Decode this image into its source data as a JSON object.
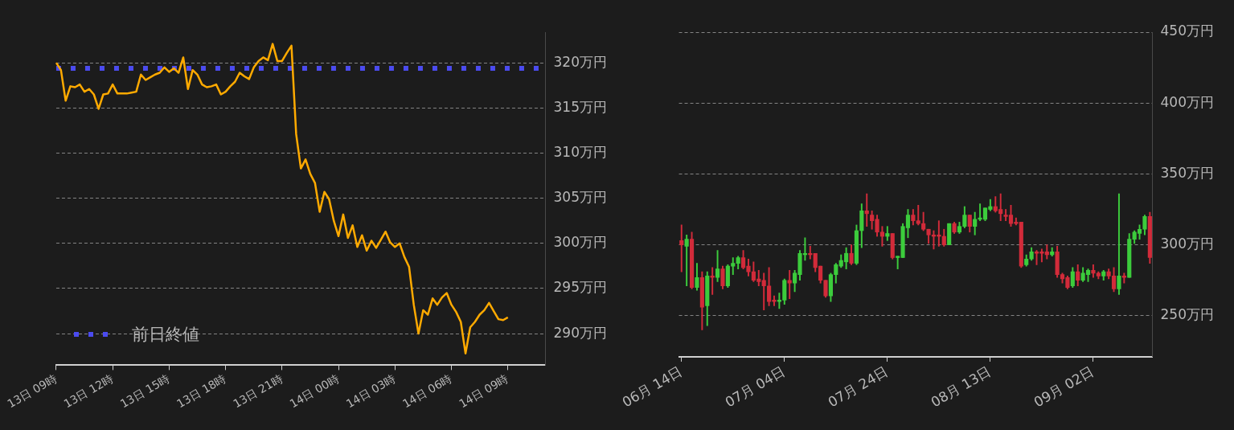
{
  "chart_data": [
    {
      "type": "line",
      "categories": [
        "13日 09時",
        null,
        null,
        null,
        null,
        null,
        null,
        null,
        null,
        null,
        null,
        null,
        "13日 12時",
        null,
        null,
        null,
        null,
        null,
        null,
        null,
        null,
        null,
        null,
        null,
        "13日 15時",
        null,
        null,
        null,
        null,
        null,
        null,
        null,
        null,
        null,
        null,
        null,
        "13日 18時",
        null,
        null,
        null,
        null,
        null,
        null,
        null,
        null,
        null,
        null,
        null,
        "13日 21時",
        null,
        null,
        null,
        null,
        null,
        null,
        null,
        null,
        null,
        null,
        null,
        "14日 00時",
        null,
        null,
        null,
        null,
        null,
        null,
        null,
        null,
        null,
        null,
        null,
        "14日 03時",
        null,
        null,
        null,
        null,
        null,
        null,
        null,
        null,
        null,
        null,
        null,
        "14日 06時",
        null,
        null,
        null,
        null,
        null,
        null,
        null,
        null,
        null,
        null,
        null,
        "14日 09時",
        null,
        null,
        null,
        null,
        null,
        null,
        null,
        null
      ],
      "series": [
        {
          "color": "#ffaa00",
          "values": [
            320.0,
            319.2,
            315.8,
            317.4,
            317.3,
            317.6,
            316.8,
            317.1,
            316.5,
            314.9,
            316.5,
            316.6,
            317.6,
            316.6,
            316.6,
            316.6,
            316.7,
            316.8,
            318.7,
            318.1,
            318.4,
            318.7,
            318.9,
            319.5,
            319.0,
            319.4,
            318.9,
            320.6,
            317.1,
            319.2,
            318.7,
            317.6,
            317.3,
            317.4,
            317.6,
            316.5,
            316.8,
            317.4,
            317.9,
            318.9,
            318.5,
            318.2,
            319.5,
            320.2,
            320.6,
            320.3,
            322.1,
            320.2,
            320.2,
            321.1,
            321.9,
            312.1,
            308.3,
            309.3,
            307.7,
            306.7,
            303.5,
            305.7,
            304.9,
            302.5,
            300.8,
            303.2,
            300.6,
            302.0,
            299.6,
            300.9,
            299.2,
            300.3,
            299.5,
            300.4,
            301.3,
            300.1,
            299.6,
            300.0,
            298.5,
            297.4,
            293.2,
            290.0,
            292.6,
            292.1,
            293.9,
            293.2,
            294.0,
            294.5,
            293.2,
            292.4,
            291.3,
            287.8,
            290.7,
            291.3,
            292.1,
            292.6,
            293.4,
            292.5,
            291.6,
            291.5,
            291.8,
            null,
            null,
            null,
            null,
            null,
            null,
            null,
            null
          ]
        }
      ],
      "ylim": [
        286.5,
        323.4
      ],
      "yticks": [
        {
          "value": 290,
          "label": "290万円"
        },
        {
          "value": 295,
          "label": "295万円"
        },
        {
          "value": 300,
          "label": "300万円"
        },
        {
          "value": 305,
          "label": "305万円"
        },
        {
          "value": 310,
          "label": "310万円"
        },
        {
          "value": 315,
          "label": "315万円"
        },
        {
          "value": 320,
          "label": "320万円"
        }
      ],
      "ref_lines": [
        {
          "axis": "y",
          "value": 319.4,
          "label": "前日終値",
          "color": "#4b4bf0",
          "line_style": "dotted"
        }
      ],
      "grid": "y",
      "legend": "bottom left"
    },
    {
      "type": "candlestick",
      "categories": [
        "06月 14日",
        null,
        null,
        null,
        null,
        null,
        null,
        null,
        null,
        null,
        null,
        null,
        null,
        null,
        null,
        null,
        null,
        null,
        null,
        null,
        "07月 04日",
        null,
        null,
        null,
        null,
        null,
        null,
        null,
        null,
        null,
        null,
        null,
        null,
        null,
        null,
        null,
        null,
        null,
        null,
        null,
        "07月 24日",
        null,
        null,
        null,
        null,
        null,
        null,
        null,
        null,
        null,
        null,
        null,
        null,
        null,
        null,
        null,
        null,
        null,
        null,
        null,
        "08月 13日",
        null,
        null,
        null,
        null,
        null,
        null,
        null,
        null,
        null,
        null,
        null,
        null,
        null,
        null,
        null,
        null,
        null,
        null,
        null,
        "09月 02日",
        null,
        null,
        null,
        null,
        null,
        null,
        null,
        null,
        null,
        null,
        null
      ],
      "ohlc": [
        [
          303,
          314,
          281,
          300
        ],
        [
          299,
          307,
          271,
          304
        ],
        [
          304,
          309,
          269,
          270
        ],
        [
          270,
          287,
          268,
          277
        ],
        [
          277,
          281,
          240,
          256
        ],
        [
          257,
          281,
          243,
          278
        ],
        [
          278,
          284,
          265,
          277
        ],
        [
          277,
          296,
          274,
          283
        ],
        [
          283,
          285,
          269,
          271
        ],
        [
          271,
          286,
          270,
          285
        ],
        [
          285,
          291,
          279,
          287
        ],
        [
          287,
          292,
          283,
          291
        ],
        [
          291,
          296,
          283,
          284
        ],
        [
          285,
          290,
          278,
          281
        ],
        [
          281,
          288,
          274,
          275
        ],
        [
          276,
          282,
          271,
          274
        ],
        [
          275,
          280,
          254,
          271
        ],
        [
          271,
          284,
          257,
          260
        ],
        [
          261,
          264,
          257,
          260
        ],
        [
          260,
          266,
          255,
          261
        ],
        [
          261,
          276,
          258,
          275
        ],
        [
          275,
          282,
          262,
          273
        ],
        [
          273,
          282,
          267,
          280
        ],
        [
          279,
          296,
          275,
          294
        ],
        [
          293,
          305,
          289,
          294
        ],
        [
          294,
          299,
          290,
          293
        ],
        [
          294,
          294,
          281,
          284
        ],
        [
          285,
          285,
          273,
          275
        ],
        [
          275,
          275,
          263,
          264
        ],
        [
          264,
          280,
          260,
          279
        ],
        [
          279,
          287,
          273,
          286
        ],
        [
          285,
          293,
          284,
          289
        ],
        [
          288,
          298,
          283,
          294
        ],
        [
          294,
          300,
          286,
          287
        ],
        [
          287,
          314,
          286,
          310
        ],
        [
          310,
          329,
          298,
          324
        ],
        [
          324,
          336,
          313,
          322
        ],
        [
          321,
          324,
          311,
          317
        ],
        [
          318,
          321,
          306,
          309
        ],
        [
          309,
          313,
          299,
          306
        ],
        [
          306,
          313,
          303,
          308
        ],
        [
          308,
          308,
          290,
          291
        ],
        [
          291,
          292,
          283,
          292
        ],
        [
          291,
          315,
          291,
          313
        ],
        [
          312,
          325,
          305,
          321
        ],
        [
          321,
          325,
          314,
          317
        ],
        [
          317,
          328,
          314,
          315
        ],
        [
          315,
          323,
          310,
          311
        ],
        [
          311,
          311,
          301,
          307
        ],
        [
          307,
          310,
          297,
          306
        ],
        [
          307,
          317,
          299,
          306
        ],
        [
          306,
          311,
          299,
          300
        ],
        [
          300,
          315,
          300,
          315
        ],
        [
          315,
          316,
          308,
          309
        ],
        [
          309,
          316,
          308,
          313
        ],
        [
          313,
          327,
          312,
          321
        ],
        [
          321,
          321,
          309,
          313
        ],
        [
          313,
          323,
          307,
          318
        ],
        [
          318,
          329,
          317,
          319
        ],
        [
          318,
          326,
          317,
          326
        ],
        [
          325,
          332,
          324,
          327
        ],
        [
          327,
          334,
          323,
          324
        ],
        [
          325,
          336,
          317,
          322
        ],
        [
          321,
          325,
          317,
          320
        ],
        [
          321,
          328,
          313,
          315
        ],
        [
          316,
          319,
          314,
          315
        ],
        [
          316,
          316,
          284,
          285
        ],
        [
          286,
          293,
          285,
          290
        ],
        [
          290,
          298,
          289,
          295
        ],
        [
          295,
          296,
          286,
          294
        ],
        [
          295,
          297,
          288,
          294
        ],
        [
          295,
          300,
          290,
          293
        ],
        [
          293,
          298,
          292,
          295
        ],
        [
          295,
          299,
          277,
          279
        ],
        [
          279,
          280,
          273,
          276
        ],
        [
          277,
          278,
          269,
          270
        ],
        [
          271,
          284,
          270,
          281
        ],
        [
          281,
          286,
          271,
          275
        ],
        [
          275,
          284,
          274,
          280
        ],
        [
          279,
          283,
          274,
          282
        ],
        [
          282,
          286,
          277,
          280
        ],
        [
          280,
          281,
          276,
          278
        ],
        [
          278,
          282,
          275,
          281
        ],
        [
          281,
          283,
          276,
          278
        ],
        [
          278,
          284,
          267,
          269
        ],
        [
          269,
          336,
          265,
          278
        ],
        [
          278,
          280,
          273,
          277
        ],
        [
          277,
          308,
          277,
          304
        ],
        [
          304,
          310,
          301,
          309
        ],
        [
          308,
          314,
          304,
          311
        ],
        [
          311,
          321,
          307,
          320
        ],
        [
          320,
          323,
          287,
          291
        ]
      ],
      "colors": [
        "#d22b3a",
        "#3ccc3c",
        "#d22b3a",
        "#3ccc3c",
        "#d22b3a",
        "#3ccc3c",
        "#d22b3a",
        "#3ccc3c",
        "#d22b3a",
        "#3ccc3c",
        "#3ccc3c",
        "#3ccc3c",
        "#d22b3a",
        "#d22b3a",
        "#d22b3a",
        "#d22b3a",
        "#d22b3a",
        "#d22b3a",
        "#d22b3a",
        "#3ccc3c",
        "#3ccc3c",
        "#d22b3a",
        "#3ccc3c",
        "#3ccc3c",
        "#3ccc3c",
        "#d22b3a",
        "#d22b3a",
        "#d22b3a",
        "#d22b3a",
        "#3ccc3c",
        "#3ccc3c",
        "#3ccc3c",
        "#3ccc3c",
        "#d22b3a",
        "#3ccc3c",
        "#3ccc3c",
        "#d22b3a",
        "#d22b3a",
        "#d22b3a",
        "#d22b3a",
        "#3ccc3c",
        "#d22b3a",
        "#3ccc3c",
        "#3ccc3c",
        "#3ccc3c",
        "#d22b3a",
        "#d22b3a",
        "#d22b3a",
        "#d22b3a",
        "#d22b3a",
        "#d22b3a",
        "#d22b3a",
        "#3ccc3c",
        "#d22b3a",
        "#3ccc3c",
        "#3ccc3c",
        "#d22b3a",
        "#3ccc3c",
        "#3ccc3c",
        "#3ccc3c",
        "#3ccc3c",
        "#d22b3a",
        "#d22b3a",
        "#d22b3a",
        "#d22b3a",
        "#d22b3a",
        "#d22b3a",
        "#3ccc3c",
        "#3ccc3c",
        "#d22b3a",
        "#d22b3a",
        "#d22b3a",
        "#3ccc3c",
        "#d22b3a",
        "#d22b3a",
        "#d22b3a",
        "#3ccc3c",
        "#d22b3a",
        "#3ccc3c",
        "#3ccc3c",
        "#d22b3a",
        "#d22b3a",
        "#3ccc3c",
        "#d22b3a",
        "#d22b3a",
        "#3ccc3c",
        "#d22b3a",
        "#3ccc3c",
        "#3ccc3c",
        "#3ccc3c",
        "#3ccc3c",
        "#d22b3a"
      ],
      "ylim": [
        221,
        450
      ],
      "yticks": [
        {
          "value": 250,
          "label": "250万円"
        },
        {
          "value": 300,
          "label": "300万円"
        },
        {
          "value": 350,
          "label": "350万円"
        },
        {
          "value": 400,
          "label": "400万円"
        },
        {
          "value": 450,
          "label": "450万円"
        }
      ],
      "grid": "y"
    }
  ]
}
